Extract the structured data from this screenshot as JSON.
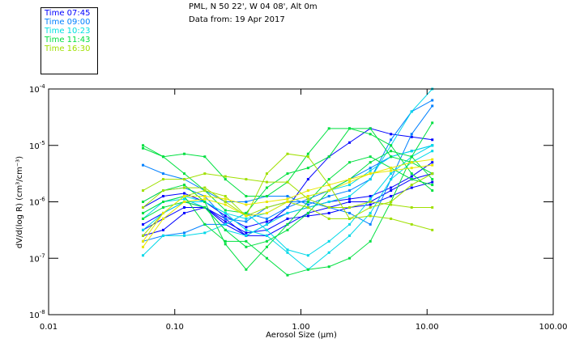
{
  "header": {
    "line1": "PML, N 50 22', W 04 08', Alt 0m",
    "line2": "Data from: 19 Apr 2017"
  },
  "chart_data": {
    "type": "line",
    "title": "PML, N 50 22', W 04 08', Alt 0m",
    "subtitle": "Data from: 19 Apr 2017",
    "xlabel": "Aerosol Size (µm)",
    "ylabel": "dV/d(log R) (cm³/cm⁻³)",
    "xscale": "log",
    "yscale": "log",
    "xlim": [
      0.01,
      100
    ],
    "ylim": [
      1e-08,
      0.0001
    ],
    "xticks": [
      "0.01",
      "0.10",
      "1.00",
      "10.00",
      "100.00"
    ],
    "yticks": [
      {
        "base": "10",
        "exp": "-4"
      },
      {
        "base": "10",
        "exp": "-5"
      },
      {
        "base": "10",
        "exp": "-6"
      },
      {
        "base": "10",
        "exp": "-7"
      },
      {
        "base": "10",
        "exp": "-8"
      }
    ],
    "legend_position": "top-left",
    "legend": [
      {
        "label": "Time 07:45",
        "color": "#0000ff"
      },
      {
        "label": "Time 09:00",
        "color": "#0080ff"
      },
      {
        "label": "Time 10:23",
        "color": "#00e0e0"
      },
      {
        "label": "Time 11:43",
        "color": "#00e040"
      },
      {
        "label": "Time 16:30",
        "color": "#a0e000"
      }
    ],
    "x": [
      0.056,
      0.081,
      0.119,
      0.173,
      0.252,
      0.368,
      0.537,
      0.783,
      1.14,
      1.67,
      2.43,
      3.55,
      5.17,
      7.55,
      11.0
    ],
    "series_note_log10": true,
    "series": [
      {
        "group": 0,
        "log10_values": [
          -6.4,
          -6.2,
          -6.0,
          -6.1,
          -6.4,
          -6.6,
          -6.6,
          -6.4,
          -6.2,
          -6.1,
          -6.0,
          -6.0,
          -5.8,
          -5.6,
          -5.5
        ]
      },
      {
        "group": 0,
        "log10_values": [
          -6.5,
          -6.3,
          -6.1,
          -6.1,
          -6.35,
          -6.55,
          -6.5,
          -6.3,
          -6.25,
          -6.2,
          -6.1,
          -6.05,
          -5.9,
          -5.75,
          -5.65
        ]
      },
      {
        "group": 0,
        "log10_values": [
          -6.1,
          -5.9,
          -5.85,
          -6.0,
          -6.25,
          -6.45,
          -6.35,
          -6.2,
          -6.1,
          -6.0,
          -5.95,
          -5.9,
          -5.75,
          -5.55,
          -5.3
        ]
      },
      {
        "group": 0,
        "log10_values": [
          -6.6,
          -6.5,
          -6.2,
          -6.1,
          -6.3,
          -6.6,
          -6.4,
          -6.1,
          -5.6,
          -5.2,
          -4.95,
          -4.7,
          -4.8,
          -4.85,
          -4.9
        ]
      },
      {
        "group": 1,
        "log10_values": [
          -5.35,
          -5.5,
          -5.6,
          -5.8,
          -6.0,
          -6.0,
          -5.9,
          -5.9,
          -6.05,
          -5.9,
          -5.8,
          -5.6,
          -4.9,
          -4.4,
          -4.2
        ]
      },
      {
        "group": 1,
        "log10_values": [
          -6.0,
          -5.8,
          -5.75,
          -5.9,
          -6.3,
          -6.35,
          -6.1,
          -6.0,
          -6.0,
          -6.1,
          -6.2,
          -6.4,
          -5.6,
          -4.8,
          -4.3
        ]
      },
      {
        "group": 1,
        "log10_values": [
          -6.7,
          -6.6,
          -6.55,
          -6.4,
          -6.4,
          -6.2,
          -6.3,
          -6.1,
          -5.95,
          -5.8,
          -5.6,
          -5.4,
          -5.2,
          -5.1,
          -5.0
        ]
      },
      {
        "group": 2,
        "log10_values": [
          -6.95,
          -6.6,
          -6.6,
          -6.55,
          -6.4,
          -6.2,
          -6.5,
          -6.85,
          -6.95,
          -6.7,
          -6.4,
          -5.95,
          -5.5,
          -5.2,
          -5.0
        ]
      },
      {
        "group": 2,
        "log10_values": [
          -6.3,
          -6.0,
          -5.95,
          -6.1,
          -6.5,
          -6.6,
          -6.4,
          -6.2,
          -6.1,
          -6.0,
          -5.9,
          -5.6,
          -5.0,
          -4.4,
          -4.0
        ]
      },
      {
        "group": 2,
        "log10_values": [
          -6.2,
          -6.0,
          -5.9,
          -6.0,
          -6.2,
          -6.3,
          -6.2,
          -6.0,
          -5.9,
          -5.8,
          -5.7,
          -5.45,
          -5.2,
          -5.1,
          -5.0
        ]
      },
      {
        "group": 2,
        "log10_values": [
          -6.5,
          -6.2,
          -6.0,
          -6.0,
          -6.2,
          -6.5,
          -6.6,
          -6.9,
          -7.2,
          -6.9,
          -6.6,
          -6.2,
          -5.6,
          -5.3,
          -5.1
        ]
      },
      {
        "group": 3,
        "log10_values": [
          -5.0,
          -5.2,
          -5.15,
          -5.2,
          -5.6,
          -5.9,
          -5.9,
          -5.65,
          -5.15,
          -4.7,
          -4.7,
          -4.7,
          -5.2,
          -5.3,
          -5.5
        ]
      },
      {
        "group": 3,
        "log10_values": [
          -5.05,
          -5.2,
          -5.5,
          -5.8,
          -6.15,
          -6.2,
          -5.75,
          -5.5,
          -5.4,
          -5.2,
          -4.7,
          -4.8,
          -5.0,
          -5.5,
          -5.8
        ]
      },
      {
        "group": 3,
        "log10_values": [
          -6.0,
          -5.8,
          -5.7,
          -6.0,
          -6.75,
          -7.2,
          -6.8,
          -6.4,
          -6.0,
          -5.6,
          -5.3,
          -5.2,
          -5.4,
          -5.6,
          -5.7
        ]
      },
      {
        "group": 3,
        "log10_values": [
          -6.2,
          -6.0,
          -5.9,
          -6.4,
          -6.7,
          -6.7,
          -7.0,
          -7.3,
          -7.2,
          -7.15,
          -7.0,
          -6.7,
          -6.0,
          -5.2,
          -4.6
        ]
      },
      {
        "group": 3,
        "log10_values": [
          -6.3,
          -6.1,
          -6.0,
          -6.1,
          -6.5,
          -6.8,
          -6.7,
          -6.5,
          -6.2,
          -5.8,
          -5.6,
          -5.3,
          -5.1,
          -5.2,
          -5.6
        ]
      },
      {
        "group": 4,
        "log10_values": [
          -5.8,
          -5.6,
          -5.6,
          -5.5,
          -5.55,
          -5.6,
          -5.65,
          -5.65,
          -5.95,
          -6.1,
          -6.1,
          -6.0,
          -6.05,
          -6.1,
          -6.1
        ]
      },
      {
        "group": 4,
        "log10_values": [
          -6.1,
          -5.8,
          -5.75,
          -5.75,
          -6.0,
          -6.25,
          -5.5,
          -5.15,
          -5.2,
          -5.7,
          -6.3,
          -6.1,
          -6.0,
          -5.7,
          -5.5
        ]
      },
      {
        "group": 4,
        "log10_values": [
          -6.6,
          -6.2,
          -5.9,
          -5.8,
          -5.9,
          -6.25,
          -6.1,
          -6.0,
          -6.1,
          -6.3,
          -6.3,
          -6.25,
          -6.3,
          -6.4,
          -6.5
        ]
      },
      {
        "group": 5,
        "log10_values": [
          -6.8,
          -6.3,
          -6.0,
          -5.95,
          -6.05,
          -6.25,
          -6.2,
          -6.0,
          -5.9,
          -5.8,
          -5.65,
          -5.5,
          -5.4,
          -5.3,
          -5.25
        ]
      },
      {
        "group": 5,
        "log10_values": [
          -6.7,
          -6.2,
          -5.9,
          -5.9,
          -5.95,
          -6.05,
          -6.0,
          -5.95,
          -5.8,
          -5.7,
          -5.6,
          -5.5,
          -5.45,
          -5.4,
          -5.35
        ]
      }
    ],
    "group_colors": [
      "#0000ff",
      "#0080ff",
      "#00d8e8",
      "#00e040",
      "#a0e000",
      "#e8e800"
    ]
  }
}
